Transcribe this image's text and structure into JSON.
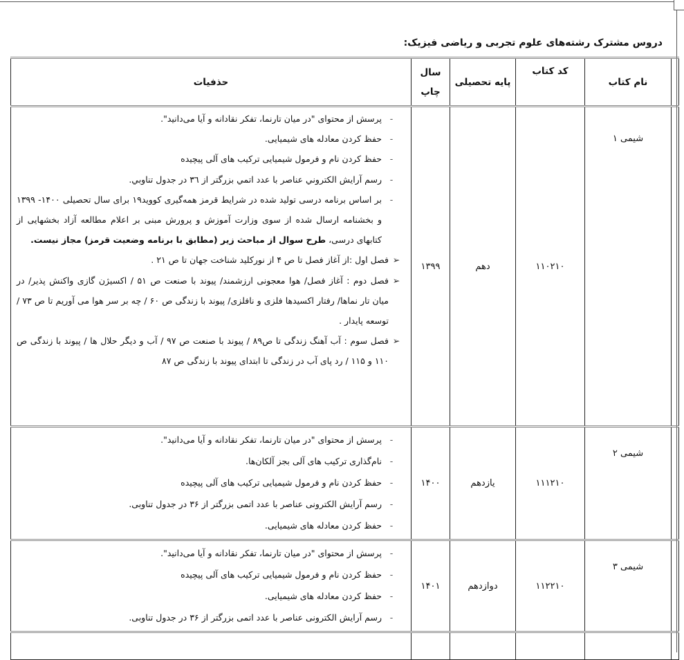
{
  "title": "دروس مشترک رشته‌های علوم تجربی و ریاضی فیزیک:",
  "headers": {
    "book_name": "نام کتاب",
    "book_code": "کد کتاب",
    "grade": "پایه تحصیلی",
    "print_year": "سال چاپ",
    "deletions": "حذفیات"
  },
  "rows": [
    {
      "name": "شیمی ۱",
      "code": "۱۱۰۲۱۰",
      "grade": "دهم",
      "year": "۱۳۹۹",
      "items": [
        {
          "marker": "-",
          "text": "پرسش از محتوای \"در میان تارنما، تفکر نقادانه و آیا می‌دانید\"."
        },
        {
          "marker": "-",
          "text": "حفظ کردن معادله های شیمیایی."
        },
        {
          "marker": "-",
          "text": "حفظ کردن نام و فرمول شیمیایی ترکیب های آلی پیچیده"
        },
        {
          "marker": "-",
          "text": "رسم آرایش الکتروني عناصر با عدد اتمي بزرگتر از ٣٦ در جدول تناوبي."
        },
        {
          "marker": "-",
          "text": "بر اساس برنامه درسی تولید شده در شرایط قرمز همه‌گیری کووید۱۹ برای سال تحصیلی ۱۴۰۰- ۱۳۹۹ و بخشنامه ارسال شده از سوی وزارت آموزش و پرورش مبنی بر اعلام مطالعه آزاد بخشهایی از کتابهای درسی، ",
          "bold": "طرح سوال از مباحث زیر (مطابق با برنامه وضعیت قرمز) مجاز نیست."
        },
        {
          "marker": "➢",
          "text": "فصل اول :از آغاز فصل تا ص ۴ از نورکلید شناخت جهان تا ص ۲۱ ."
        },
        {
          "marker": "➢",
          "text": "فصل دوم : آغاز فصل/ هوا معجونی ارزشمند/ پیوند با صنعت ص ۵۱ / اکسیژن گازی واکنش پذیر/ در میان تار نماها/ رفتار اکسیدها فلزی و نافلزی/ پیوند با زندگی ص ۶۰ / چه بر سر هوا می آوریم تا ص ۷۳ / توسعه پایدار ."
        },
        {
          "marker": "➢",
          "text": "فصل سوم : آب آهنگ زندگی تا ص۸۹ / پیوند با صنعت ص ۹۷ / آب و دیگر حلال ها / پیوند با زندگی ص ۱۱۰ و ۱۱۵ / رد پای آب در زندگی تا ابتدای پیوند با زندگی ص ۸۷"
        }
      ]
    },
    {
      "name": "شیمی ۲",
      "code": "۱۱۱۲۱۰",
      "grade": "یازدهم",
      "year": "۱۴۰۰",
      "items": [
        {
          "marker": "-",
          "text": "پرسش از محتوای \"در میان تارنما، تفکر نقادانه و آیا می‌دانید\"."
        },
        {
          "marker": "-",
          "text": "نام‌گذاری ترکیب های آلی بجز آلکان‌ها."
        },
        {
          "marker": "-",
          "text": "حفظ کردن نام و فرمول شیمیایی ترکیب های آلی پیچیده"
        },
        {
          "marker": "-",
          "text": "رسم آرایش الکترونی عناصر با عدد اتمی بزرگتر از ۳۶ در جدول تناوبی."
        },
        {
          "marker": "-",
          "text": "حفظ کردن معادله های شیمیایی."
        }
      ]
    },
    {
      "name": "شیمی ۳",
      "code": "۱۱۲۲۱۰",
      "grade": "دوازدهم",
      "year": "۱۴۰۱",
      "items": [
        {
          "marker": "-",
          "text": "پرسش از محتوای \"در میان تارنما، تفکر نقادانه و آیا می‌دانید\"."
        },
        {
          "marker": "-",
          "text": "حفظ کردن نام و فرمول شیمیایی ترکیب های آلی پیچیده"
        },
        {
          "marker": "-",
          "text": "حفظ کردن معادله های شیمیایی."
        },
        {
          "marker": "-",
          "text": "رسم آرایش الکترونی عناصر با عدد اتمی بزرگتر از ۳۶ در جدول تناوبی."
        }
      ]
    }
  ]
}
